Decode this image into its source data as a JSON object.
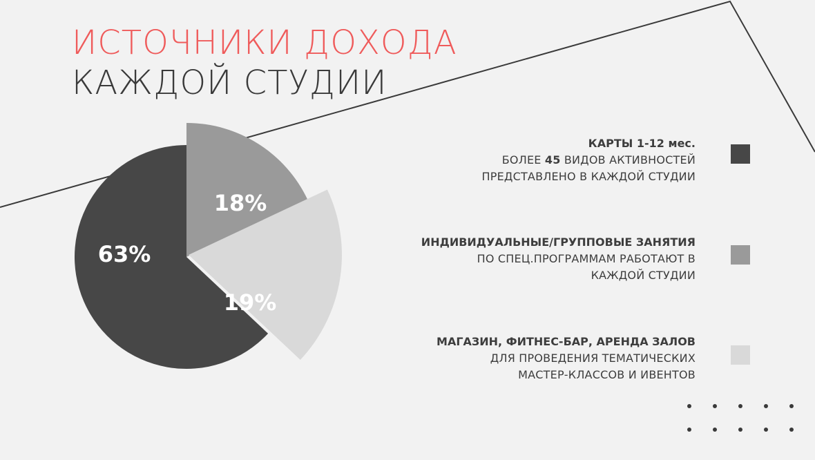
{
  "title": {
    "line1": "ИСТОЧНИКИ ДОХОДА",
    "line2": "КАЖДОЙ СТУДИИ",
    "line1_color": "#ef5b5b",
    "line2_color": "#3a3a3a"
  },
  "chart_data": {
    "type": "pie",
    "slices": [
      {
        "label": "63%",
        "value": 63,
        "color": "#474747",
        "exploded": false,
        "legend": "cards"
      },
      {
        "label": "18%",
        "value": 18,
        "color": "#9a9a9a",
        "exploded": true,
        "legend": "individual"
      },
      {
        "label": "19%",
        "value": 19,
        "color": "#d9d9d9",
        "exploded": true,
        "legend": "shop"
      }
    ],
    "title": "ИСТОЧНИКИ ДОХОДА КАЖДОЙ СТУДИИ"
  },
  "legend": {
    "items": [
      {
        "id": "cards",
        "heading": "КАРТЫ 1-12 мес.",
        "desc_before": "БОЛЕЕ ",
        "desc_bold": "45",
        "desc_after": " ВИДОВ АКТИВНОСТЕЙ",
        "desc_line2": "ПРЕДСТАВЛЕНО В КАЖДОЙ СТУДИИ",
        "color": "#474747"
      },
      {
        "id": "individual",
        "heading": "ИНДИВИДУАЛЬНЫЕ/ГРУППОВЫЕ ЗАНЯТИЯ",
        "desc_line1": "ПО СПЕЦ.ПРОГРАММАМ РАБОТАЮТ В",
        "desc_line2": "КАЖДОЙ СТУДИИ",
        "color": "#9a9a9a"
      },
      {
        "id": "shop",
        "heading": "МАГАЗИН, ФИТНЕС-БАР, АРЕНДА ЗАЛОВ",
        "desc_line1": "ДЛЯ ПРОВЕДЕНИЯ ТЕМАТИЧЕСКИХ",
        "desc_line2": "МАСТЕР-КЛАССОВ И ИВЕНТОВ",
        "color": "#d9d9d9"
      }
    ]
  },
  "colors": {
    "background": "#f2f2f2",
    "accent": "#ef5b5b",
    "text": "#3d3d3d",
    "line": "#3a3a3a"
  }
}
